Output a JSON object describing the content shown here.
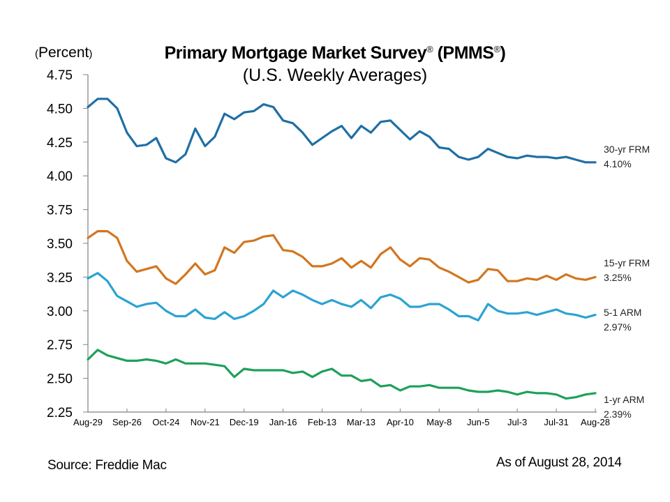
{
  "title": "Primary Mortgage Market Survey",
  "title_mark": "®",
  "title_abbrev": "(PMMS",
  "title_abbrev_close": ")",
  "subtitle": "(U.S. Weekly Averages)",
  "unit_label": "Percent",
  "source": "Source: Freddie Mac",
  "as_of": "As of August 28, 2014",
  "chart_data": {
    "type": "line",
    "title": "Primary Mortgage Market Survey® (PMMS®)",
    "subtitle": "(U.S. Weekly Averages)",
    "xlabel": "",
    "ylabel": "(Percent)",
    "ylim": [
      2.25,
      4.75
    ],
    "yticks": [
      "4.75",
      "4.50",
      "4.25",
      "4.00",
      "3.75",
      "3.50",
      "3.25",
      "3.00",
      "2.75",
      "2.50",
      "2.25"
    ],
    "ytick_values": [
      4.75,
      4.5,
      4.25,
      4.0,
      3.75,
      3.5,
      3.25,
      3.0,
      2.75,
      2.5,
      2.25
    ],
    "xtick_labels": [
      "Aug-29",
      "Sep-26",
      "Oct-24",
      "Nov-21",
      "Dec-19",
      "Jan-16",
      "Feb-13",
      "Mar-13",
      "Apr-10",
      "May-8",
      "Jun-5",
      "Jul-3",
      "Jul-31",
      "Aug-28"
    ],
    "xtick_every_n_weeks": 4,
    "n_points": 53,
    "grid": false,
    "legend": "right-end labels",
    "series": [
      {
        "name": "30-yr FRM",
        "last_label": "4.10%",
        "color": "#1f6fa5",
        "values": [
          4.51,
          4.57,
          4.57,
          4.5,
          4.32,
          4.22,
          4.23,
          4.28,
          4.13,
          4.1,
          4.16,
          4.35,
          4.22,
          4.29,
          4.46,
          4.42,
          4.47,
          4.48,
          4.53,
          4.51,
          4.41,
          4.39,
          4.32,
          4.23,
          4.28,
          4.33,
          4.37,
          4.28,
          4.37,
          4.32,
          4.4,
          4.41,
          4.34,
          4.27,
          4.33,
          4.29,
          4.21,
          4.2,
          4.14,
          4.12,
          4.14,
          4.2,
          4.17,
          4.14,
          4.13,
          4.15,
          4.14,
          4.14,
          4.13,
          4.14,
          4.12,
          4.1,
          4.1
        ]
      },
      {
        "name": "15-yr FRM",
        "last_label": "3.25%",
        "color": "#d2761f",
        "values": [
          3.54,
          3.59,
          3.59,
          3.54,
          3.37,
          3.29,
          3.31,
          3.33,
          3.24,
          3.2,
          3.27,
          3.35,
          3.27,
          3.3,
          3.47,
          3.43,
          3.51,
          3.52,
          3.55,
          3.56,
          3.45,
          3.44,
          3.4,
          3.33,
          3.33,
          3.35,
          3.39,
          3.32,
          3.37,
          3.32,
          3.42,
          3.47,
          3.38,
          3.33,
          3.39,
          3.38,
          3.32,
          3.29,
          3.25,
          3.21,
          3.23,
          3.31,
          3.3,
          3.22,
          3.22,
          3.24,
          3.23,
          3.26,
          3.23,
          3.27,
          3.24,
          3.23,
          3.25
        ]
      },
      {
        "name": "5-1 ARM",
        "last_label": "2.97%",
        "color": "#2ba3d2",
        "values": [
          3.24,
          3.28,
          3.22,
          3.11,
          3.07,
          3.03,
          3.05,
          3.06,
          3.0,
          2.96,
          2.96,
          3.01,
          2.95,
          2.94,
          2.99,
          2.94,
          2.96,
          3.0,
          3.05,
          3.15,
          3.1,
          3.15,
          3.12,
          3.08,
          3.05,
          3.08,
          3.05,
          3.03,
          3.08,
          3.02,
          3.1,
          3.12,
          3.09,
          3.03,
          3.03,
          3.05,
          3.05,
          3.01,
          2.96,
          2.96,
          2.93,
          3.05,
          3.0,
          2.98,
          2.98,
          2.99,
          2.97,
          2.99,
          3.01,
          2.98,
          2.97,
          2.95,
          2.97
        ]
      },
      {
        "name": "1-yr ARM",
        "last_label": "2.39%",
        "color": "#1fa05a",
        "values": [
          2.64,
          2.71,
          2.67,
          2.65,
          2.63,
          2.63,
          2.64,
          2.63,
          2.61,
          2.64,
          2.61,
          2.61,
          2.61,
          2.6,
          2.59,
          2.51,
          2.57,
          2.56,
          2.56,
          2.56,
          2.56,
          2.54,
          2.55,
          2.51,
          2.55,
          2.57,
          2.52,
          2.52,
          2.48,
          2.49,
          2.44,
          2.45,
          2.41,
          2.44,
          2.44,
          2.45,
          2.43,
          2.43,
          2.43,
          2.41,
          2.4,
          2.4,
          2.41,
          2.4,
          2.38,
          2.4,
          2.39,
          2.39,
          2.38,
          2.35,
          2.36,
          2.38,
          2.39
        ]
      }
    ]
  }
}
